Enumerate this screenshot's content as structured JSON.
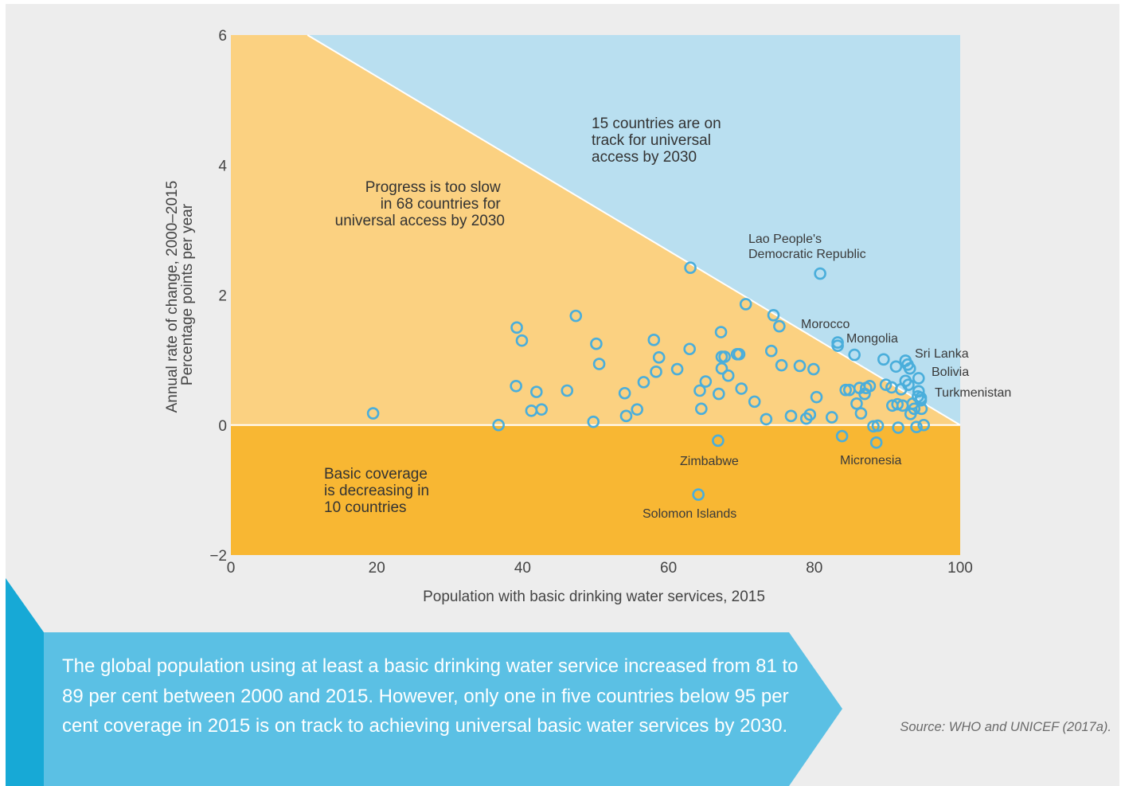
{
  "colors": {
    "panel_background": "#ededed",
    "on_track_region": "#b9dff0",
    "too_slow_region": "#fbd181",
    "decreasing_region": "#f8b733",
    "marker": "#4aaedb",
    "callout_fill": "#5bc0e4",
    "callout_edge": "#17a9d6"
  },
  "chart_data": {
    "type": "scatter",
    "xlabel": "Population with basic drinking water services, 2015",
    "ylabel": [
      "Annual rate of change, 2000–2015",
      "Percentage points per year"
    ],
    "xlim": [
      0,
      100
    ],
    "ylim": [
      -2,
      6
    ],
    "xticks": [
      0,
      20,
      40,
      60,
      80,
      100
    ],
    "yticks": [
      6,
      4,
      2,
      0,
      -2
    ],
    "ytick_labels": [
      "6",
      "4",
      "2",
      "0",
      "−2"
    ],
    "regions": [
      {
        "name": "on-track",
        "lines": [
          "15 countries are on",
          "track for universal",
          "access by 2030"
        ]
      },
      {
        "name": "too-slow",
        "lines": [
          "Progress is too slow",
          "in 68 countries for",
          "universal access by 2030"
        ]
      },
      {
        "name": "decreasing",
        "lines": [
          "Basic coverage",
          "is decreasing in",
          "10 countries"
        ]
      }
    ],
    "threshold_line": {
      "x": [
        10.5,
        100
      ],
      "y": [
        6,
        0
      ]
    },
    "labeled_points": [
      {
        "label": [
          "Lao People's",
          "Democratic Republic"
        ],
        "x": 80.8,
        "y": 2.33
      },
      {
        "label": [
          "Morocco"
        ],
        "x": 83.2,
        "y": 1.27
      },
      {
        "label": [
          "Mongolia"
        ],
        "x": 85.5,
        "y": 1.08
      },
      {
        "label": [
          "Sri Lanka"
        ],
        "x": 92.5,
        "y": 0.99
      },
      {
        "label": [
          "Bolivia"
        ],
        "x": 94.3,
        "y": 0.72
      },
      {
        "label": [
          "Turkmenistan"
        ],
        "x": 94.6,
        "y": 0.42
      },
      {
        "label": [
          "Zimbabwe"
        ],
        "x": 66.8,
        "y": -0.24
      },
      {
        "label": [
          "Micronesia"
        ],
        "x": 88.5,
        "y": -0.27
      },
      {
        "label": [
          "Solomon Islands"
        ],
        "x": 64.1,
        "y": -1.07
      }
    ],
    "points": [
      {
        "x": 19.5,
        "y": 0.18
      },
      {
        "x": 36.7,
        "y": 0.0
      },
      {
        "x": 39.1,
        "y": 0.6
      },
      {
        "x": 39.2,
        "y": 1.5
      },
      {
        "x": 39.9,
        "y": 1.3
      },
      {
        "x": 41.2,
        "y": 0.22
      },
      {
        "x": 41.9,
        "y": 0.51
      },
      {
        "x": 42.6,
        "y": 0.24
      },
      {
        "x": 46.1,
        "y": 0.53
      },
      {
        "x": 47.3,
        "y": 1.68
      },
      {
        "x": 49.7,
        "y": 0.05
      },
      {
        "x": 50.1,
        "y": 1.25
      },
      {
        "x": 50.5,
        "y": 0.94
      },
      {
        "x": 54.0,
        "y": 0.49
      },
      {
        "x": 54.2,
        "y": 0.14
      },
      {
        "x": 55.7,
        "y": 0.24
      },
      {
        "x": 56.6,
        "y": 0.66
      },
      {
        "x": 58.0,
        "y": 1.31
      },
      {
        "x": 58.3,
        "y": 0.82
      },
      {
        "x": 58.7,
        "y": 1.04
      },
      {
        "x": 61.2,
        "y": 0.86
      },
      {
        "x": 62.9,
        "y": 1.17
      },
      {
        "x": 63.0,
        "y": 2.42
      },
      {
        "x": 64.3,
        "y": 0.53
      },
      {
        "x": 64.5,
        "y": 0.25
      },
      {
        "x": 65.1,
        "y": 0.67
      },
      {
        "x": 66.9,
        "y": 0.48
      },
      {
        "x": 67.2,
        "y": 1.43
      },
      {
        "x": 67.3,
        "y": 1.05
      },
      {
        "x": 67.3,
        "y": 0.87
      },
      {
        "x": 67.7,
        "y": 1.05
      },
      {
        "x": 68.2,
        "y": 0.76
      },
      {
        "x": 69.4,
        "y": 1.09
      },
      {
        "x": 69.7,
        "y": 1.09
      },
      {
        "x": 70.0,
        "y": 0.56
      },
      {
        "x": 70.6,
        "y": 1.86
      },
      {
        "x": 71.8,
        "y": 0.36
      },
      {
        "x": 73.4,
        "y": 0.09
      },
      {
        "x": 74.1,
        "y": 1.14
      },
      {
        "x": 74.4,
        "y": 1.69
      },
      {
        "x": 75.2,
        "y": 1.52
      },
      {
        "x": 75.5,
        "y": 0.92
      },
      {
        "x": 76.8,
        "y": 0.14
      },
      {
        "x": 78.0,
        "y": 0.91
      },
      {
        "x": 78.9,
        "y": 0.1
      },
      {
        "x": 79.4,
        "y": 0.16
      },
      {
        "x": 79.9,
        "y": 0.86
      },
      {
        "x": 80.3,
        "y": 0.43
      },
      {
        "x": 83.2,
        "y": 1.22
      },
      {
        "x": 82.4,
        "y": 0.12
      },
      {
        "x": 83.8,
        "y": -0.17
      },
      {
        "x": 84.3,
        "y": 0.54
      },
      {
        "x": 84.8,
        "y": 0.54
      },
      {
        "x": 85.8,
        "y": 0.33
      },
      {
        "x": 86.2,
        "y": 0.57
      },
      {
        "x": 86.4,
        "y": 0.18
      },
      {
        "x": 86.9,
        "y": 0.48
      },
      {
        "x": 87.1,
        "y": 0.57
      },
      {
        "x": 87.6,
        "y": 0.6
      },
      {
        "x": 88.1,
        "y": -0.02
      },
      {
        "x": 88.7,
        "y": -0.01
      },
      {
        "x": 89.5,
        "y": 1.01
      },
      {
        "x": 89.8,
        "y": 0.62
      },
      {
        "x": 90.6,
        "y": 0.58
      },
      {
        "x": 90.7,
        "y": 0.3
      },
      {
        "x": 91.2,
        "y": 0.9
      },
      {
        "x": 91.4,
        "y": 0.32
      },
      {
        "x": 91.5,
        "y": -0.04
      },
      {
        "x": 91.9,
        "y": 0.55
      },
      {
        "x": 92.1,
        "y": 0.3
      },
      {
        "x": 92.5,
        "y": 0.68
      },
      {
        "x": 92.8,
        "y": 0.93
      },
      {
        "x": 92.9,
        "y": 0.62
      },
      {
        "x": 93.1,
        "y": 0.87
      },
      {
        "x": 93.2,
        "y": 0.17
      },
      {
        "x": 93.5,
        "y": 0.33
      },
      {
        "x": 93.7,
        "y": 0.25
      },
      {
        "x": 94.0,
        "y": -0.03
      },
      {
        "x": 94.2,
        "y": 0.44
      },
      {
        "x": 94.3,
        "y": 0.52
      },
      {
        "x": 94.6,
        "y": 0.38
      },
      {
        "x": 94.7,
        "y": 0.25
      },
      {
        "x": 95.0,
        "y": 0.0
      }
    ]
  },
  "callout": {
    "text": "The global population using at least a basic drinking water service increased from 81 to 89 per cent between 2000 and 2015. However, only one in five countries below 95 per cent coverage in 2015 is on track to achieving universal basic water services by 2030."
  },
  "source": "Source: WHO and UNICEF (2017a)."
}
